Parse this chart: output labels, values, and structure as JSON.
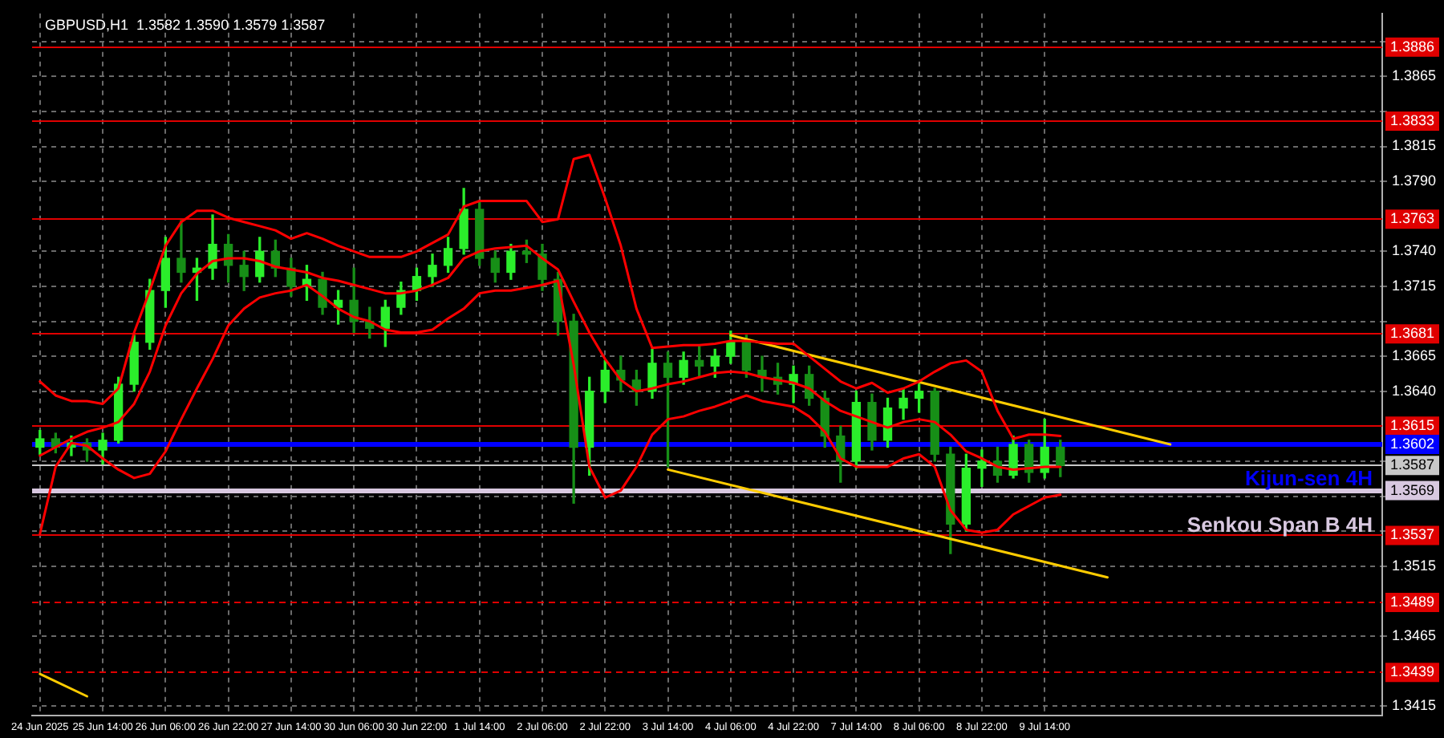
{
  "chart_data": {
    "type": "candlestick",
    "title": "GBPUSD,H1  1.3582 1.3590 1.3579 1.3587",
    "colors": [
      "#2bee2b",
      "#178f17",
      "#2bee2b",
      "#178f17",
      "#2bee2b",
      "#2bee2b",
      "#2bee2b",
      "#2bee2b",
      "#2bee2b",
      "#178f17",
      "#2bee2b",
      "#2bee2b",
      "#178f17",
      "#178f17",
      "#2bee2b",
      "#178f17",
      "#178f17",
      "#2bee2b",
      "#178f17",
      "#2bee2b",
      "#178f17",
      "#178f17",
      "#2bee2b",
      "#2bee2b",
      "#2bee2b",
      "#2bee2b",
      "#2bee2b",
      "#2bee2b",
      "#178f17",
      "#178f17",
      "#2bee2b",
      "#178f17",
      "#178f17",
      "#178f17",
      "#178f17",
      "#2bee2b",
      "#2bee2b",
      "#178f17",
      "#178f17",
      "#2bee2b",
      "#178f17",
      "#2bee2b",
      "#178f17",
      "#2bee2b",
      "#2bee2b",
      "#178f17",
      "#178f17",
      "#178f17",
      "#2bee2b",
      "#178f17",
      "#178f17",
      "#178f17",
      "#2bee2b",
      "#178f17",
      "#2bee2b",
      "#2bee2b",
      "#2bee2b",
      "#178f17",
      "#178f17",
      "#2bee2b",
      "#2bee2b",
      "#178f17",
      "#2bee2b",
      "#178f17",
      "#2bee2b",
      "#178f17",
      null,
      null,
      null,
      null,
      null,
      null,
      null,
      null,
      null,
      null,
      null,
      null,
      null,
      null,
      null,
      null,
      null,
      null,
      null,
      null
    ],
    "categories": [
      "24 Jun 2025",
      null,
      null,
      null,
      "25 Jun 14:00",
      null,
      null,
      null,
      "26 Jun 06:00",
      null,
      null,
      null,
      "26 Jun 22:00",
      null,
      null,
      null,
      "27 Jun 14:00",
      null,
      null,
      null,
      "30 Jun 06:00",
      null,
      null,
      null,
      "30 Jun 22:00",
      null,
      null,
      null,
      "1 Jul 14:00",
      null,
      null,
      null,
      "2 Jul 06:00",
      null,
      null,
      null,
      "2 Jul 22:00",
      null,
      null,
      null,
      "3 Jul 14:00",
      null,
      null,
      null,
      "4 Jul 06:00",
      null,
      null,
      null,
      "4 Jul 22:00",
      null,
      null,
      null,
      "7 Jul 14:00",
      null,
      null,
      null,
      "8 Jul 06:00",
      null,
      null,
      null,
      "8 Jul 22:00",
      null,
      null,
      null,
      "9 Jul 14:00",
      null,
      null,
      null,
      null,
      null,
      null,
      null,
      null,
      null,
      null,
      null,
      null,
      null,
      null,
      null,
      null,
      null,
      null,
      null,
      null,
      null
    ],
    "ohlc": [
      [
        1.36,
        1.3612,
        1.3595,
        1.3606
      ],
      [
        1.3606,
        1.361,
        1.3596,
        1.36
      ],
      [
        1.36,
        1.3608,
        1.3594,
        1.3603
      ],
      [
        1.3603,
        1.3606,
        1.359,
        1.3598
      ],
      [
        1.3598,
        1.361,
        1.3588,
        1.3605
      ],
      [
        1.3605,
        1.365,
        1.3603,
        1.3645
      ],
      [
        1.3645,
        1.368,
        1.364,
        1.3675
      ],
      [
        1.3675,
        1.372,
        1.367,
        1.3712
      ],
      [
        1.3712,
        1.375,
        1.37,
        1.3735
      ],
      [
        1.3735,
        1.3762,
        1.3718,
        1.3725
      ],
      [
        1.3725,
        1.3735,
        1.3705,
        1.3728
      ],
      [
        1.3728,
        1.3766,
        1.372,
        1.3745
      ],
      [
        1.3745,
        1.3752,
        1.3718,
        1.373
      ],
      [
        1.373,
        1.374,
        1.3712,
        1.3722
      ],
      [
        1.3722,
        1.375,
        1.3718,
        1.374
      ],
      [
        1.374,
        1.3748,
        1.3722,
        1.3728
      ],
      [
        1.3728,
        1.3735,
        1.3708,
        1.3715
      ],
      [
        1.3715,
        1.373,
        1.3705,
        1.372
      ],
      [
        1.372,
        1.3725,
        1.3695,
        1.37
      ],
      [
        1.37,
        1.3712,
        1.3688,
        1.3705
      ],
      [
        1.3705,
        1.3728,
        1.3682,
        1.369
      ],
      [
        1.369,
        1.37,
        1.3678,
        1.3685
      ],
      [
        1.3685,
        1.3705,
        1.3672,
        1.37
      ],
      [
        1.37,
        1.3718,
        1.3695,
        1.3712
      ],
      [
        1.3712,
        1.3728,
        1.3705,
        1.3722
      ],
      [
        1.3722,
        1.3738,
        1.3715,
        1.373
      ],
      [
        1.373,
        1.375,
        1.3725,
        1.3742
      ],
      [
        1.3742,
        1.3785,
        1.3738,
        1.377
      ],
      [
        1.377,
        1.3775,
        1.373,
        1.3735
      ],
      [
        1.3735,
        1.374,
        1.3718,
        1.3725
      ],
      [
        1.3725,
        1.3745,
        1.372,
        1.374
      ],
      [
        1.374,
        1.3748,
        1.3732,
        1.3738
      ],
      [
        1.3738,
        1.3745,
        1.3712,
        1.372
      ],
      [
        1.372,
        1.3725,
        1.368,
        1.369
      ],
      [
        1.369,
        1.3695,
        1.356,
        1.36
      ],
      [
        1.36,
        1.365,
        1.358,
        1.364
      ],
      [
        1.364,
        1.3662,
        1.3632,
        1.3655
      ],
      [
        1.3655,
        1.3665,
        1.364,
        1.3648
      ],
      [
        1.3648,
        1.3655,
        1.363,
        1.364
      ],
      [
        1.364,
        1.367,
        1.3635,
        1.366
      ],
      [
        1.366,
        1.3668,
        1.3586,
        1.365
      ],
      [
        1.365,
        1.3668,
        1.3645,
        1.3662
      ],
      [
        1.3662,
        1.3672,
        1.365,
        1.3658
      ],
      [
        1.3658,
        1.367,
        1.365,
        1.3665
      ],
      [
        1.3665,
        1.3683,
        1.366,
        1.3675
      ],
      [
        1.3675,
        1.368,
        1.365,
        1.3655
      ],
      [
        1.3655,
        1.3665,
        1.364,
        1.365
      ],
      [
        1.365,
        1.366,
        1.3638,
        1.3645
      ],
      [
        1.3645,
        1.3658,
        1.3632,
        1.3652
      ],
      [
        1.3652,
        1.3658,
        1.363,
        1.3635
      ],
      [
        1.3635,
        1.364,
        1.36,
        1.3608
      ],
      [
        1.3608,
        1.3615,
        1.3575,
        1.359
      ],
      [
        1.359,
        1.364,
        1.3585,
        1.3632
      ],
      [
        1.3632,
        1.3638,
        1.3598,
        1.3605
      ],
      [
        1.3605,
        1.3635,
        1.36,
        1.3628
      ],
      [
        1.3628,
        1.3642,
        1.362,
        1.3635
      ],
      [
        1.3635,
        1.3645,
        1.3625,
        1.364
      ],
      [
        1.364,
        1.3642,
        1.359,
        1.3595
      ],
      [
        1.3595,
        1.36,
        1.3524,
        1.3545
      ],
      [
        1.3545,
        1.3595,
        1.354,
        1.3585
      ],
      [
        1.3585,
        1.3598,
        1.3572,
        1.359
      ],
      [
        1.359,
        1.36,
        1.3575,
        1.358
      ],
      [
        1.358,
        1.3608,
        1.3578,
        1.3602
      ],
      [
        1.3602,
        1.3605,
        1.3575,
        1.3582
      ],
      [
        1.3582,
        1.362,
        1.3578,
        1.36
      ],
      [
        1.36,
        1.3605,
        1.3579,
        1.3587
      ],
      null,
      null,
      null,
      null,
      null,
      null,
      null,
      null,
      null,
      null,
      null,
      null,
      null,
      null,
      null,
      null,
      null,
      null,
      null,
      null
    ],
    "series": [
      {
        "type": "line",
        "color": "#ff0000",
        "values": [
          1.3647,
          1.3637,
          1.3633,
          1.3633,
          1.3631,
          1.3642,
          1.3682,
          1.3712,
          1.3744,
          1.3761,
          1.3769,
          1.3769,
          1.3764,
          1.3761,
          1.3758,
          1.3755,
          1.3749,
          1.3753,
          1.3749,
          1.3744,
          1.374,
          1.3736,
          1.3736,
          1.3736,
          1.374,
          1.3746,
          1.3752,
          1.3772,
          1.3776,
          1.3776,
          1.3776,
          1.3776,
          1.3761,
          1.3763,
          1.3806,
          1.3809,
          1.3778,
          1.3744,
          1.3699,
          1.3671,
          1.3672,
          1.3673,
          1.3673,
          1.3674,
          1.3676,
          1.3676,
          1.3675,
          1.3674,
          1.3674,
          1.3665,
          1.3656,
          1.3647,
          1.3642,
          1.3646,
          1.3639,
          1.3642,
          1.3647,
          1.3654,
          1.366,
          1.3662,
          1.3654,
          1.3626,
          1.3606,
          1.3609,
          1.3609,
          1.3608,
          null,
          null,
          null,
          null,
          null,
          null,
          null,
          null,
          null,
          null,
          null,
          null,
          null,
          null,
          null,
          null,
          null,
          null,
          null,
          null
        ]
      },
      {
        "type": "line",
        "color": "#ff0000",
        "values": [
          1.3594,
          1.36,
          1.3606,
          1.3611,
          1.3614,
          1.3618,
          1.3631,
          1.3654,
          1.3687,
          1.371,
          1.3724,
          1.3733,
          1.3735,
          1.3735,
          1.3733,
          1.3729,
          1.3727,
          1.3725,
          1.3721,
          1.3719,
          1.3716,
          1.3713,
          1.371,
          1.371,
          1.3712,
          1.3716,
          1.3721,
          1.3735,
          1.374,
          1.3742,
          1.3743,
          1.3744,
          1.3735,
          1.3727,
          1.3704,
          1.3682,
          1.3663,
          1.3648,
          1.364,
          1.3642,
          1.3645,
          1.3647,
          1.365,
          1.3653,
          1.3654,
          1.3653,
          1.365,
          1.3648,
          1.3646,
          1.3642,
          1.3633,
          1.3626,
          1.3622,
          1.3618,
          1.3614,
          1.3618,
          1.362,
          1.3618,
          1.3609,
          1.3597,
          1.3592,
          1.3586,
          1.3584,
          1.3585,
          1.3586,
          1.3586,
          null,
          null,
          null,
          null,
          null,
          null,
          null,
          null,
          null,
          null,
          null,
          null,
          null,
          null,
          null,
          null,
          null,
          null,
          null,
          null
        ]
      },
      {
        "type": "line",
        "color": "#ff0000",
        "values": [
          1.3538,
          1.3586,
          1.3603,
          1.3601,
          1.3592,
          1.3584,
          1.3578,
          1.3581,
          1.3597,
          1.362,
          1.3642,
          1.3663,
          1.3687,
          1.3699,
          1.3707,
          1.371,
          1.3712,
          1.3716,
          1.3708,
          1.3699,
          1.3693,
          1.369,
          1.3684,
          1.3682,
          1.3682,
          1.3684,
          1.3692,
          1.3699,
          1.371,
          1.3712,
          1.3712,
          1.3714,
          1.3716,
          1.3719,
          1.3659,
          1.3586,
          1.3564,
          1.3569,
          1.3586,
          1.3609,
          1.362,
          1.3622,
          1.3626,
          1.3629,
          1.3633,
          1.3637,
          1.3633,
          1.3631,
          1.3629,
          1.3622,
          1.3611,
          1.3592,
          1.3586,
          1.3586,
          1.3586,
          1.3592,
          1.3595,
          1.3586,
          1.3555,
          1.3541,
          1.3539,
          1.3541,
          1.3552,
          1.3558,
          1.3564,
          1.3566,
          null,
          null,
          null,
          null,
          null,
          null,
          null,
          null,
          null,
          null,
          null,
          null,
          null,
          null,
          null,
          null,
          null,
          null,
          null,
          null
        ]
      },
      {
        "type": "line",
        "color": "#ffcc00",
        "values": [
          null,
          null,
          null,
          null,
          null,
          null,
          null,
          null,
          null,
          null,
          null,
          null,
          null,
          null,
          null,
          null,
          null,
          null,
          null,
          null,
          null,
          null,
          null,
          null,
          null,
          null,
          null,
          null,
          null,
          null,
          null,
          null,
          null,
          null,
          null,
          null,
          null,
          null,
          null,
          null,
          null,
          null,
          null,
          null,
          1.368,
          null,
          null,
          null,
          null,
          null,
          null,
          null,
          null,
          null,
          null,
          null,
          null,
          null,
          null,
          null,
          null,
          null,
          null,
          null,
          null,
          null,
          null,
          null,
          null,
          null,
          null,
          null,
          1.3602,
          null,
          null,
          null,
          null,
          null,
          null,
          null,
          null,
          null,
          null,
          null,
          null,
          null
        ]
      },
      {
        "type": "line",
        "color": "#ffcc00",
        "values": [
          null,
          null,
          null,
          null,
          null,
          null,
          null,
          null,
          null,
          null,
          null,
          null,
          null,
          null,
          null,
          null,
          null,
          null,
          null,
          null,
          null,
          null,
          null,
          null,
          null,
          null,
          null,
          null,
          null,
          null,
          null,
          null,
          null,
          null,
          null,
          null,
          null,
          null,
          null,
          null,
          1.3584,
          null,
          null,
          null,
          null,
          null,
          null,
          null,
          null,
          null,
          null,
          null,
          null,
          null,
          null,
          null,
          null,
          null,
          null,
          null,
          null,
          null,
          null,
          null,
          null,
          null,
          null,
          null,
          1.3507,
          null,
          null,
          null,
          null,
          null,
          null,
          null,
          null,
          null,
          null,
          null,
          null,
          null,
          null,
          null,
          null,
          null
        ]
      },
      {
        "type": "line",
        "color": "#ffcc00",
        "values": [
          1.3438,
          null,
          null,
          1.3422,
          null,
          null,
          null,
          null,
          null,
          null,
          null,
          null,
          null,
          null,
          null,
          null,
          null,
          null,
          null,
          null,
          null,
          null,
          null,
          null,
          null,
          null,
          null,
          null,
          null,
          null,
          null,
          null,
          null,
          null,
          null,
          null,
          null,
          null,
          null,
          null,
          null,
          null,
          null,
          null,
          null,
          null,
          null,
          null,
          null,
          null,
          null,
          null,
          null,
          null,
          null,
          null,
          null,
          null,
          null,
          null,
          null,
          null,
          null,
          null,
          null,
          null,
          null,
          null,
          null,
          null,
          null,
          null,
          null,
          null,
          null,
          null,
          null,
          null,
          null,
          null,
          null,
          null,
          null,
          null,
          null,
          null
        ]
      }
    ],
    "ylim": [
      1.3408,
      1.391
    ],
    "yticks": [
      {
        "value": 1.3415,
        "label": "1.3415"
      },
      {
        "value": 1.3465,
        "label": "1.3465"
      },
      {
        "value": 1.3515,
        "label": "1.3515"
      },
      {
        "value": 1.354,
        "label": null
      },
      {
        "value": 1.3565,
        "label": null
      },
      {
        "value": 1.359,
        "label": null
      },
      {
        "value": 1.364,
        "label": "1.3640"
      },
      {
        "value": 1.3665,
        "label": "1.3665"
      },
      {
        "value": 1.369,
        "label": null
      },
      {
        "value": 1.3715,
        "label": "1.3715"
      },
      {
        "value": 1.374,
        "label": "1.3740"
      },
      {
        "value": 1.379,
        "label": "1.3790"
      },
      {
        "value": 1.3815,
        "label": "1.3815"
      },
      {
        "value": 1.384,
        "label": null
      },
      {
        "value": 1.3865,
        "label": "1.3865"
      },
      {
        "value": 1.389,
        "label": null
      }
    ],
    "grid": true,
    "ref_lines": [
      {
        "axis": "y",
        "value": 1.3886,
        "color": "#e00000"
      },
      {
        "axis": "y",
        "value": 1.3833,
        "color": "#e00000"
      },
      {
        "axis": "y",
        "value": 1.3763,
        "color": "#e00000"
      },
      {
        "axis": "y",
        "value": 1.3681,
        "color": "#e00000"
      },
      {
        "axis": "y",
        "value": 1.3615,
        "color": "#e00000"
      },
      {
        "axis": "y",
        "value": 1.3537,
        "color": "#e00000"
      },
      {
        "axis": "y",
        "value": 1.3489,
        "color": "#e00000",
        "line_style": "dashed"
      },
      {
        "axis": "y",
        "value": 1.3439,
        "color": "#e00000",
        "line_style": "dashed"
      },
      {
        "axis": "y",
        "value": 1.3602,
        "color": "#0000ff",
        "label": "Kijun-sen 4H"
      },
      {
        "axis": "y",
        "value": 1.3569,
        "color": "#d8c8e0",
        "label": "Senkou Span B 4H"
      },
      {
        "axis": "y",
        "value": 1.3587,
        "color": "#c8c8c8"
      }
    ],
    "annotations": [
      {
        "text": "1.3886",
        "y": 1.3886
      },
      {
        "text": "1.3833",
        "y": 1.3833
      },
      {
        "text": "1.3763",
        "y": 1.3763
      },
      {
        "text": "1.3681",
        "y": 1.3681
      },
      {
        "text": "1.3615",
        "y": 1.3615
      },
      {
        "text": "1.3602",
        "y": 1.3602
      },
      {
        "text": "1.3587",
        "y": 1.3587
      },
      {
        "text": "1.3569",
        "y": 1.3569
      },
      {
        "text": "1.3537",
        "y": 1.3537
      },
      {
        "text": "1.3489",
        "y": 1.3489
      },
      {
        "text": "1.3439",
        "y": 1.3439
      }
    ]
  }
}
